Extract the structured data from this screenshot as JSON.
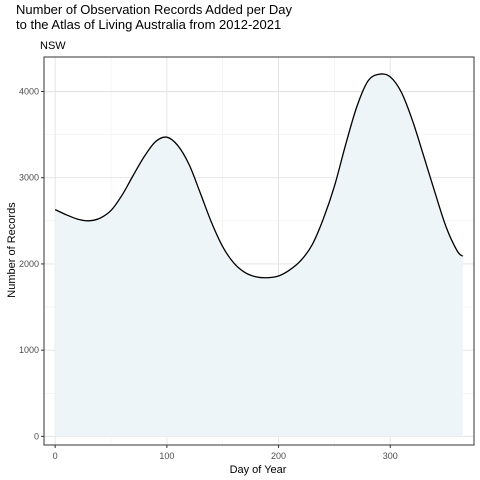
{
  "chart_data": {
    "type": "area",
    "title_line1": "Number of Observation Records Added per Day",
    "title_line2": "to the Atlas of Living Australia from 2012-2021",
    "subtitle": "NSW",
    "xlabel": "Day of Year",
    "ylabel": "Number of Records",
    "xlim": [
      -10,
      375
    ],
    "ylim": [
      -100,
      4400
    ],
    "x_ticks": [
      0,
      100,
      200,
      300
    ],
    "y_ticks": [
      0,
      1000,
      2000,
      3000,
      4000
    ],
    "grid": true,
    "fill_color": "#eef5f9",
    "line_color": "#000000",
    "series": [
      {
        "x": [
          0,
          10,
          20,
          30,
          40,
          50,
          60,
          70,
          80,
          90,
          100,
          110,
          120,
          130,
          140,
          150,
          160,
          170,
          180,
          190,
          200,
          210,
          220,
          230,
          240,
          250,
          260,
          270,
          280,
          290,
          300,
          310,
          320,
          330,
          340,
          350,
          360,
          365
        ],
        "y": [
          2630,
          2570,
          2520,
          2500,
          2530,
          2620,
          2800,
          3030,
          3250,
          3420,
          3470,
          3370,
          3150,
          2820,
          2480,
          2200,
          2010,
          1900,
          1850,
          1840,
          1860,
          1930,
          2040,
          2220,
          2520,
          2900,
          3380,
          3820,
          4120,
          4200,
          4170,
          3990,
          3660,
          3250,
          2830,
          2430,
          2150,
          2090
        ]
      }
    ]
  }
}
